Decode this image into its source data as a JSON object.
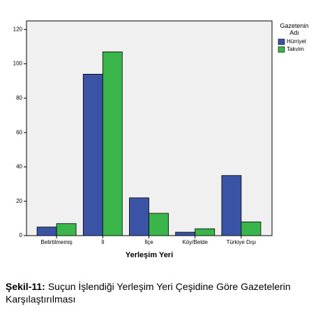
{
  "chart_data": {
    "type": "bar",
    "x_label": "Yerleşim Yeri",
    "categories": [
      "Belirtilmemiş",
      "İl",
      "İlçe",
      "Köy/Belde",
      "Türkiye Dışı"
    ],
    "series": [
      {
        "name": "Hürriyet",
        "color": "#3a53a4",
        "values": [
          5,
          94,
          22,
          2,
          35
        ]
      },
      {
        "name": "Takvim",
        "color": "#3ab54a",
        "values": [
          7,
          107,
          13,
          4,
          8
        ]
      }
    ],
    "ylim": [
      0,
      125
    ],
    "yticks": [
      0,
      20,
      40,
      60,
      80,
      100,
      120
    ],
    "legend_title": "Gazetenin Adı",
    "legend": "right"
  },
  "caption": {
    "label": "Şekil-11:",
    "text": "Suçun İşlendiği Yerleşim Yeri Çeşidine Göre Gazetelerin Karşılaştırılması"
  }
}
